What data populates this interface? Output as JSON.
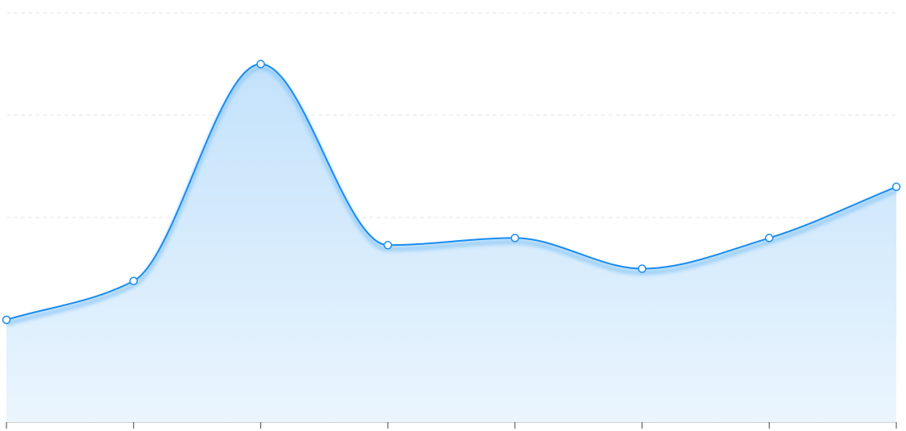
{
  "chart_data": {
    "type": "area",
    "x": [
      1,
      2,
      3,
      4,
      5,
      6,
      7,
      8
    ],
    "series": [
      {
        "values": [
          1.0,
          1.38,
          3.5,
          1.73,
          1.8,
          1.5,
          1.8,
          2.3
        ]
      }
    ],
    "ylim": [
      0,
      4
    ],
    "y_gridlines": [
      1,
      2,
      3,
      4
    ],
    "grid": "horizontal-dashed",
    "legend": "none",
    "x_tick_labels_visible": false,
    "y_tick_labels_visible": false,
    "colors": {
      "line": "#1a8cf0",
      "fill_top": "#c3e2fb",
      "fill_bottom": "#eaf5fe",
      "glow": "#8fc8f7",
      "grid": "#e6e6e6",
      "axis": "#cfcfcf",
      "marker_fill": "#ffffff"
    }
  }
}
